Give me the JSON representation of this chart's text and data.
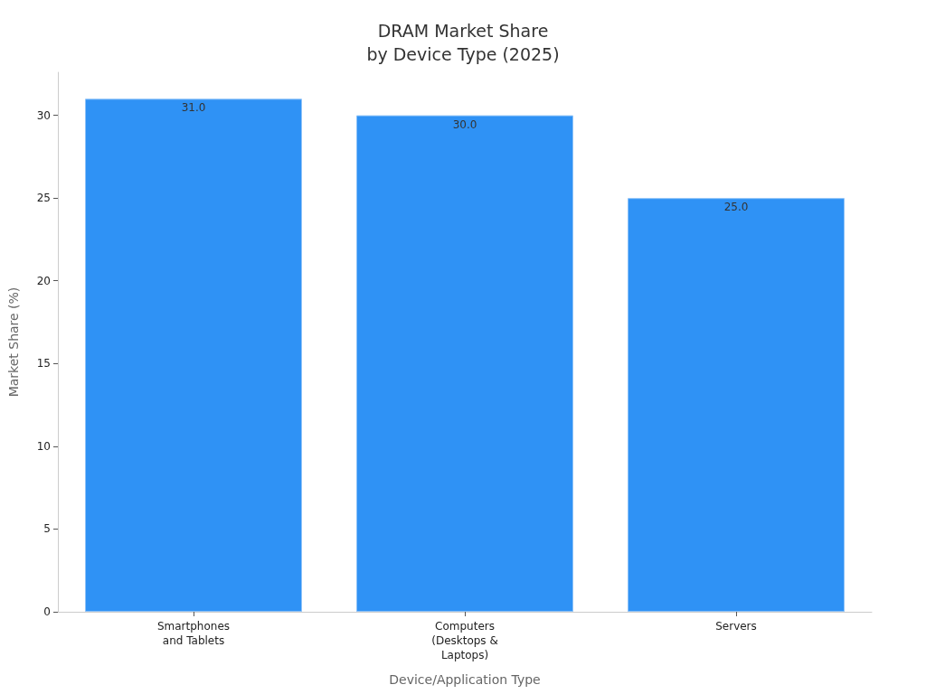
{
  "chart_data": {
    "type": "bar",
    "title": "DRAM Market Share\nby Device Type (2025)",
    "xlabel": "Device/Application Type",
    "ylabel": "Market Share (%)",
    "categories": [
      "Smartphones\nand Tablets",
      "Computers\n(Desktops &\nLaptops)",
      "Servers"
    ],
    "values": [
      31,
      30,
      25
    ],
    "value_labels": [
      "31.0",
      "30.0",
      "25.0"
    ],
    "color": "#2f92f5",
    "ylim": [
      0,
      32.6
    ],
    "yticks": [
      0,
      5,
      10,
      15,
      20,
      25,
      30
    ],
    "grid": false
  }
}
